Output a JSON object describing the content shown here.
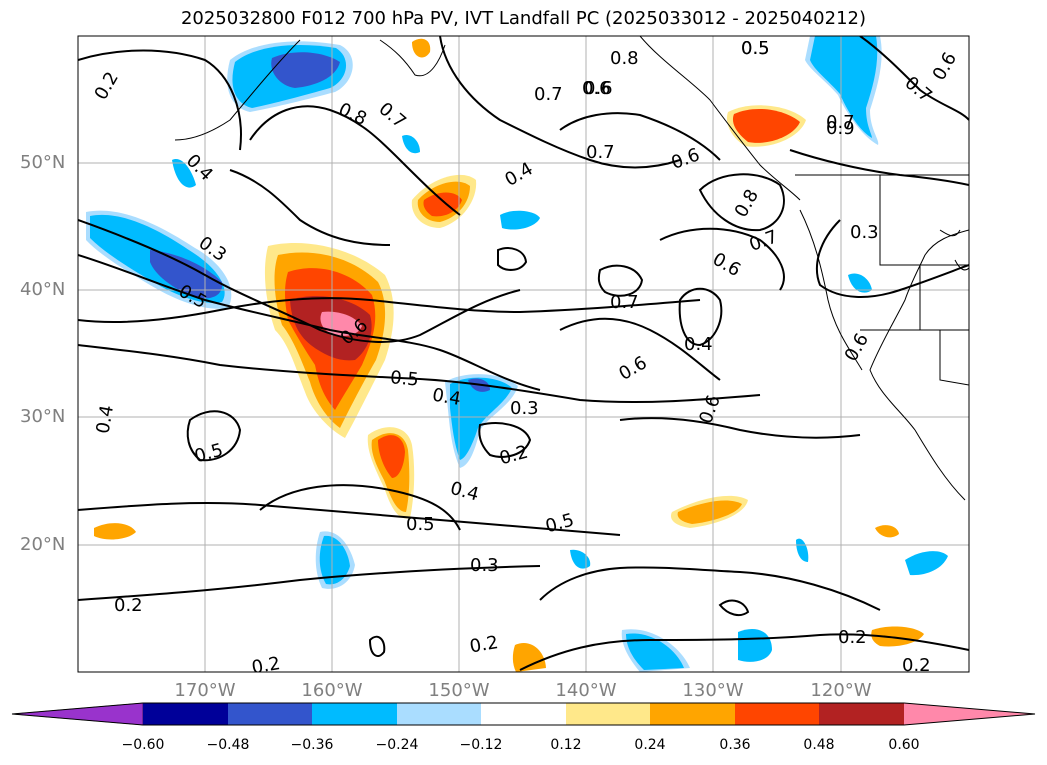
{
  "title": "2025032800 F012 700 hPa PV, IVT Landfall PC (2025033012 - 2025040212)",
  "latitude_labels": [
    "50°N",
    "40°N",
    "30°N",
    "20°N"
  ],
  "longitude_labels": [
    "170°W",
    "160°W",
    "150°W",
    "140°W",
    "130°W",
    "120°W"
  ],
  "colorbar": {
    "tick_labels": [
      "−0.60",
      "−0.48",
      "−0.36",
      "−0.24",
      "−0.12",
      "0.12",
      "0.24",
      "0.36",
      "0.48",
      "0.60"
    ],
    "colors": [
      "#9933cc",
      "#000099",
      "#3355cc",
      "#00bbff",
      "#aaddff",
      "#ffffff",
      "#ffe88a",
      "#ffa500",
      "#ff4500",
      "#b22222",
      "#ff88aa"
    ]
  },
  "contour_labels": [
    "0.2",
    "0.4",
    "0.3",
    "0.5",
    "0.8",
    "0.7",
    "0.6",
    "0.7",
    "0.5",
    "0.8",
    "0.6",
    "0.7",
    "0.4",
    "0.7",
    "0.6",
    "0.8",
    "0.9",
    "0.6",
    "0.7",
    "0.7",
    "0.3",
    "0.6",
    "0.6",
    "0.7",
    "0.4",
    "0.6",
    "0.6",
    "0.5",
    "0.4",
    "0.3",
    "0.2",
    "0.4",
    "0.5",
    "0.5",
    "0.4",
    "0.5",
    "0.3",
    "0.2",
    "0.2",
    "0.2",
    "0.2",
    "0.2",
    "0.6",
    "0.5"
  ],
  "colors": {
    "grid": "#b0b0b0",
    "axis_text": "#808080",
    "contour": "#000000"
  }
}
